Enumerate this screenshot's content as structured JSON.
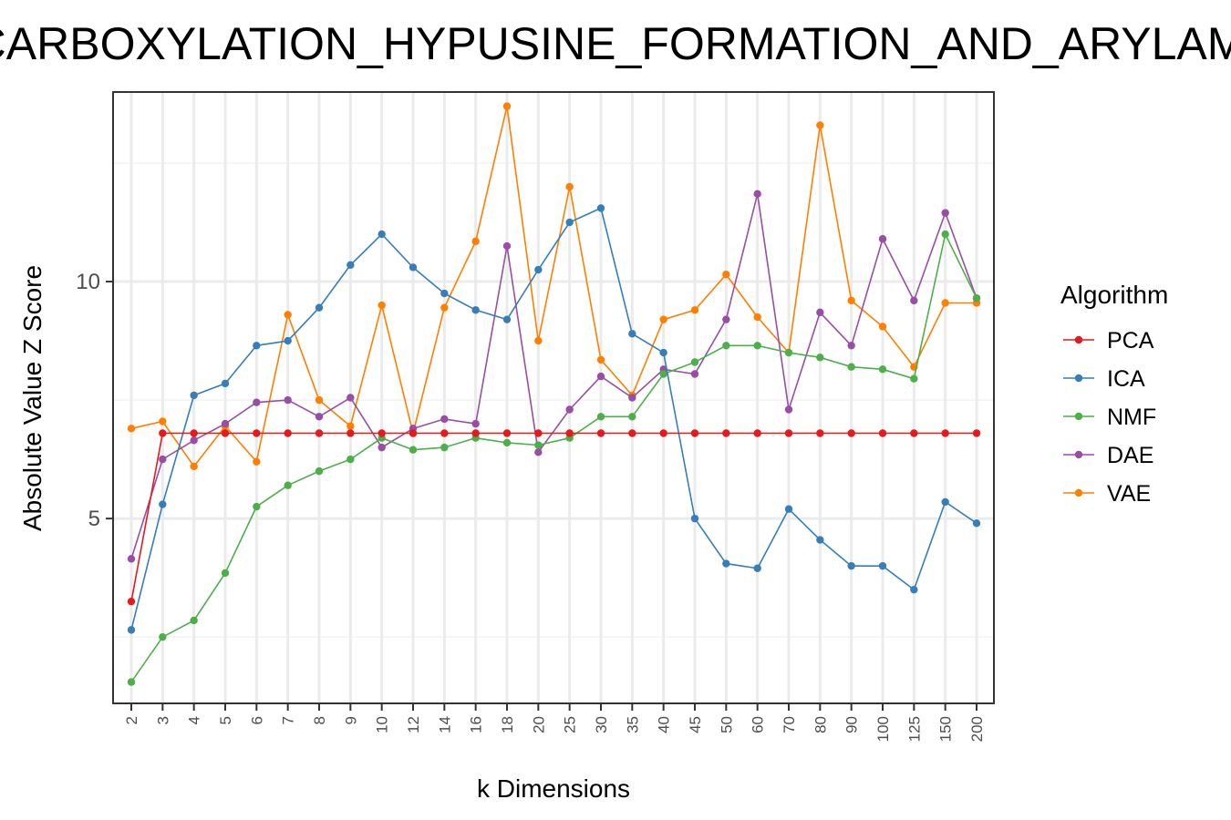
{
  "chart_data": {
    "type": "line",
    "title": "DECARBOXYLATION_HYPUSINE_FORMATION_AND_ARYLAMINE",
    "xlabel": "k Dimensions",
    "ylabel": "Absolute Value Z Score",
    "categories": [
      "2",
      "3",
      "4",
      "5",
      "6",
      "7",
      "8",
      "9",
      "10",
      "12",
      "14",
      "16",
      "18",
      "20",
      "25",
      "30",
      "35",
      "40",
      "45",
      "50",
      "60",
      "70",
      "80",
      "90",
      "100",
      "125",
      "150",
      "200"
    ],
    "ylim": [
      1.1,
      14.0
    ],
    "yticks": [
      5,
      10
    ],
    "grid": true,
    "legend": {
      "title": "Algorithm",
      "position": "right"
    },
    "series": [
      {
        "name": "PCA",
        "color": "#E41A1C",
        "values": [
          3.25,
          6.8,
          6.8,
          6.8,
          6.8,
          6.8,
          6.8,
          6.8,
          6.8,
          6.8,
          6.8,
          6.8,
          6.8,
          6.8,
          6.8,
          6.8,
          6.8,
          6.8,
          6.8,
          6.8,
          6.8,
          6.8,
          6.8,
          6.8,
          6.8,
          6.8,
          6.8,
          6.8
        ]
      },
      {
        "name": "ICA",
        "color": "#377EB8",
        "values": [
          2.65,
          5.3,
          7.6,
          7.85,
          8.65,
          8.75,
          9.45,
          10.35,
          11.0,
          10.3,
          9.75,
          9.4,
          9.2,
          10.25,
          11.25,
          11.55,
          8.9,
          8.5,
          5.0,
          4.05,
          3.95,
          5.2,
          4.55,
          4.0,
          4.0,
          3.5,
          5.35,
          4.9
        ]
      },
      {
        "name": "NMF",
        "color": "#4DAF4A",
        "values": [
          1.55,
          2.5,
          2.85,
          3.85,
          5.25,
          5.7,
          6.0,
          6.25,
          6.7,
          6.45,
          6.5,
          6.7,
          6.6,
          6.55,
          6.7,
          7.15,
          7.15,
          8.05,
          8.3,
          8.65,
          8.65,
          8.5,
          8.4,
          8.2,
          8.15,
          7.95,
          11.0,
          9.65
        ]
      },
      {
        "name": "DAE",
        "color": "#984EA3",
        "values": [
          4.15,
          6.25,
          6.65,
          7.0,
          7.45,
          7.5,
          7.15,
          7.55,
          6.5,
          6.9,
          7.1,
          7.0,
          10.75,
          6.4,
          7.3,
          8.0,
          7.55,
          8.15,
          8.05,
          9.2,
          11.85,
          7.3,
          9.35,
          8.65,
          10.9,
          9.6,
          11.45,
          9.65
        ]
      },
      {
        "name": "VAE",
        "color": "#FF7F00",
        "values": [
          6.9,
          7.05,
          6.1,
          6.95,
          6.2,
          9.3,
          7.5,
          6.95,
          9.5,
          6.8,
          9.45,
          10.85,
          13.7,
          8.75,
          12.0,
          8.35,
          7.6,
          9.2,
          9.4,
          10.15,
          9.25,
          8.5,
          13.3,
          9.6,
          9.05,
          8.2,
          9.55,
          9.55
        ]
      }
    ]
  }
}
